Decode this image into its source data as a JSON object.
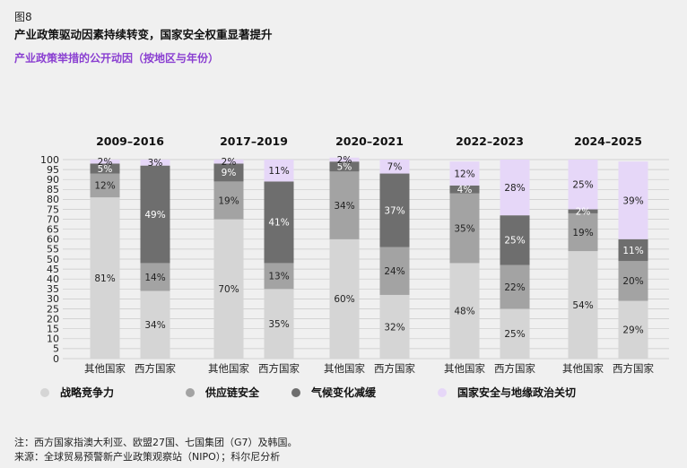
{
  "figure_number": "图8",
  "title": "产业政策驱动因素持续转变，国家安全权重显著提升",
  "subtitle": "产业政策举措的公开动因（按地区与年份）",
  "notes": [
    "注：西方国家指澳大利亚、欧盟27国、七国集团（G7）及韩国。",
    "来源：全球贸易预警新产业政策观察站（NIPO）；科尔尼分析"
  ],
  "colors": {
    "strategic": "#d5d5d5",
    "supply": "#a3a3a3",
    "climate": "#6e6e6e",
    "security": "#e6d7f8",
    "subtitle": "#8a3fd1"
  },
  "chart_data": {
    "type": "bar",
    "stacked": true,
    "ylim": [
      0,
      100
    ],
    "yticks": [
      0,
      5,
      10,
      15,
      20,
      25,
      30,
      35,
      40,
      45,
      50,
      55,
      60,
      65,
      70,
      75,
      80,
      85,
      90,
      95,
      100
    ],
    "grid": true,
    "legend_position": "bottom",
    "series": [
      {
        "name": "战略竞争力",
        "key": "strategic"
      },
      {
        "name": "供应链安全",
        "key": "supply"
      },
      {
        "name": "气候变化减缓",
        "key": "climate"
      },
      {
        "name": "国家安全与地缘政治关切",
        "key": "security"
      }
    ],
    "groups": [
      {
        "period": "2009–2016",
        "bars": [
          {
            "category": "其他国家",
            "values": [
              81,
              12,
              5,
              2
            ],
            "labels": [
              "81%",
              "12%",
              "5%",
              "2%"
            ]
          },
          {
            "category": "西方国家",
            "values": [
              34,
              14,
              49,
              3
            ],
            "labels": [
              "34%",
              "14%",
              "49%",
              "3%"
            ]
          }
        ]
      },
      {
        "period": "2017–2019",
        "bars": [
          {
            "category": "其他国家",
            "values": [
              70,
              19,
              9,
              2
            ],
            "labels": [
              "70%",
              "19%",
              "9%",
              "2%"
            ]
          },
          {
            "category": "西方国家",
            "values": [
              35,
              13,
              41,
              11
            ],
            "labels": [
              "35%",
              "13%",
              "41%",
              "11%"
            ]
          }
        ]
      },
      {
        "period": "2020–2021",
        "bars": [
          {
            "category": "其他国家",
            "values": [
              60,
              34,
              5,
              2
            ],
            "labels": [
              "60%",
              "34%",
              "5%",
              "2%"
            ]
          },
          {
            "category": "西方国家",
            "values": [
              32,
              24,
              37,
              7
            ],
            "labels": [
              "32%",
              "24%",
              "37%",
              "7%"
            ]
          }
        ]
      },
      {
        "period": "2022–2023",
        "bars": [
          {
            "category": "其他国家",
            "values": [
              48,
              35,
              4,
              12
            ],
            "labels": [
              "48%",
              "35%",
              "4%",
              "12%"
            ]
          },
          {
            "category": "西方国家",
            "values": [
              25,
              22,
              25,
              28
            ],
            "labels": [
              "25%",
              "22%",
              "25%",
              "28%"
            ]
          }
        ]
      },
      {
        "period": "2024–2025",
        "bars": [
          {
            "category": "其他国家",
            "values": [
              54,
              19,
              2,
              25
            ],
            "labels": [
              "54%",
              "19%",
              "2%",
              "25%"
            ]
          },
          {
            "category": "西方国家",
            "values": [
              29,
              20,
              11,
              39
            ],
            "labels": [
              "29%",
              "20%",
              "11%",
              "39%"
            ]
          }
        ]
      }
    ]
  }
}
